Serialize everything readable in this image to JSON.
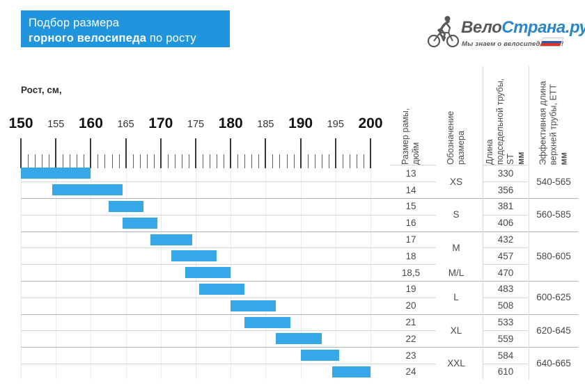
{
  "title": {
    "line1": "Подбор размера",
    "line2_bold": "горного велосипеда",
    "line2_tail": " по росту"
  },
  "logo": {
    "brand_part1": "Вело",
    "brand_part2": "Страна.ру",
    "tagline": "Мы знаем о велосипедах всё!",
    "icon": "cyclist-icon",
    "flag": "russian-flag-icon"
  },
  "colors": {
    "title_bg": "#2095dd",
    "bar_blue": "#38a7e8",
    "logo_gray": "#57585a",
    "logo_blue": "#2a86c9",
    "flag_white": "#f7f7f7",
    "flag_blue": "#2f58a8",
    "flag_red": "#d63529"
  },
  "chart_data": {
    "type": "bar",
    "orientation": "horizontal-range",
    "title": "Подбор размера горного велосипеда по росту",
    "xlabel": "Рост, см,",
    "x_range": [
      150,
      200
    ],
    "x_major_ticks": [
      150,
      155,
      160,
      165,
      170,
      175,
      180,
      185,
      190,
      195,
      200
    ],
    "x_minor_tick_step_cm": 1,
    "grid": true,
    "rows": [
      {
        "frame_size_inch": "13",
        "designation": "XS",
        "st_mm": "330",
        "ett_mm": "540-565",
        "height_range_cm": [
          150,
          160
        ]
      },
      {
        "frame_size_inch": "14",
        "designation": "XS",
        "st_mm": "356",
        "ett_mm": "540-565",
        "height_range_cm": [
          154.5,
          164.5
        ]
      },
      {
        "frame_size_inch": "15",
        "designation": "S",
        "st_mm": "381",
        "ett_mm": "560-585",
        "height_range_cm": [
          162.5,
          167.5
        ]
      },
      {
        "frame_size_inch": "16",
        "designation": "S",
        "st_mm": "406",
        "ett_mm": "560-585",
        "height_range_cm": [
          164.5,
          169.5
        ]
      },
      {
        "frame_size_inch": "17",
        "designation": "M",
        "st_mm": "432",
        "ett_mm": "580-605",
        "height_range_cm": [
          168.5,
          174.5
        ]
      },
      {
        "frame_size_inch": "18",
        "designation": "M",
        "st_mm": "457",
        "ett_mm": "580-605",
        "height_range_cm": [
          171.5,
          178
        ]
      },
      {
        "frame_size_inch": "18,5",
        "designation": "M/L",
        "st_mm": "470",
        "ett_mm": "580-605",
        "height_range_cm": [
          173.5,
          180
        ]
      },
      {
        "frame_size_inch": "19",
        "designation": "L",
        "st_mm": "483",
        "ett_mm": "600-625",
        "height_range_cm": [
          175.5,
          182
        ]
      },
      {
        "frame_size_inch": "20",
        "designation": "L",
        "st_mm": "508",
        "ett_mm": "600-625",
        "height_range_cm": [
          180,
          186.5
        ]
      },
      {
        "frame_size_inch": "21",
        "designation": "XL",
        "st_mm": "533",
        "ett_mm": "620-645",
        "height_range_cm": [
          182,
          188.5
        ]
      },
      {
        "frame_size_inch": "22",
        "designation": "XL",
        "st_mm": "559",
        "ett_mm": "620-645",
        "height_range_cm": [
          186.5,
          193
        ]
      },
      {
        "frame_size_inch": "23",
        "designation": "XXL",
        "st_mm": "584",
        "ett_mm": "640-665",
        "height_range_cm": [
          190,
          195.5
        ]
      },
      {
        "frame_size_inch": "24",
        "designation": "XXL",
        "st_mm": "610",
        "ett_mm": "640-665",
        "height_range_cm": [
          194.5,
          200
        ]
      }
    ],
    "designation_groups": [
      {
        "label": "XS",
        "rows": [
          0,
          1
        ]
      },
      {
        "label": "S",
        "rows": [
          2,
          3
        ]
      },
      {
        "label": "M",
        "rows": [
          4,
          5
        ]
      },
      {
        "label": "M/L",
        "rows": [
          6,
          6
        ]
      },
      {
        "label": "L",
        "rows": [
          7,
          8
        ]
      },
      {
        "label": "XL",
        "rows": [
          9,
          10
        ]
      },
      {
        "label": "XXL",
        "rows": [
          11,
          12
        ]
      }
    ],
    "ett_groups": [
      {
        "label": "540-565",
        "rows": [
          0,
          1
        ]
      },
      {
        "label": "560-585",
        "rows": [
          2,
          3
        ]
      },
      {
        "label": "580-605",
        "rows": [
          4,
          6
        ]
      },
      {
        "label": "600-625",
        "rows": [
          7,
          8
        ]
      },
      {
        "label": "620-645",
        "rows": [
          9,
          10
        ]
      },
      {
        "label": "640-665",
        "rows": [
          11,
          12
        ]
      }
    ],
    "group_separators_after_rows": [
      1,
      3,
      6,
      8,
      10
    ],
    "legend_position": "none"
  },
  "table_headers": {
    "frame_size_lines": [
      "Размер рамы,",
      "дюйм"
    ],
    "designation_lines": [
      "Обозначение",
      "размера"
    ],
    "seat_tube_lines": [
      "Длина",
      "подседельной трубы,",
      "ST"
    ],
    "seat_tube_unit": "мм",
    "top_tube_lines": [
      "Эффективная длина",
      "верхней трубы, ETT"
    ],
    "top_tube_unit": "мм"
  }
}
